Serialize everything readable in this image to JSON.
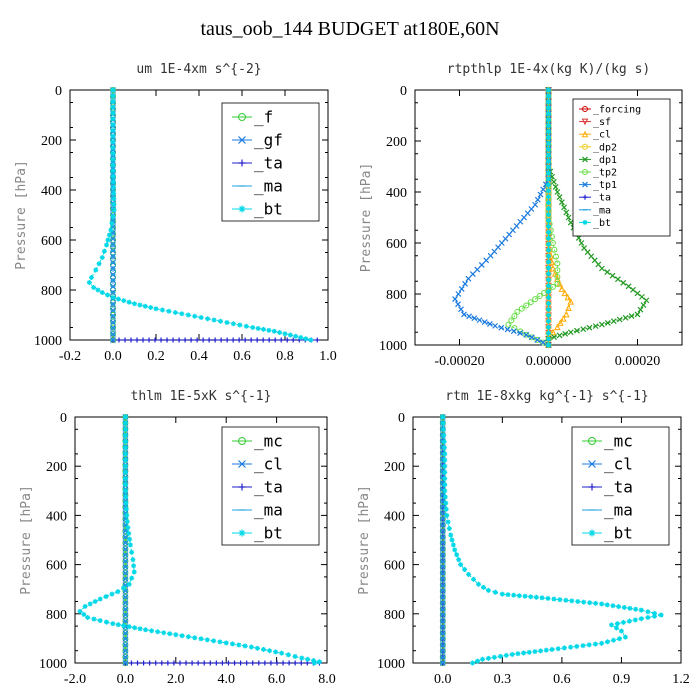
{
  "figure": {
    "title": "taus_oob_144  BUDGET at180E,60N"
  },
  "chart_data": [
    {
      "type": "line",
      "title": "um  1E-4xm s^{-2}",
      "ylabel": "Pressure [hPa]",
      "xlim": [
        -0.2,
        1.0
      ],
      "ylim": [
        1000,
        0
      ],
      "xticks": [
        "-0.2",
        "0.0",
        "0.2",
        "0.4",
        "0.6",
        "0.8",
        "1.0"
      ],
      "yticks": [
        "0",
        "200",
        "400",
        "600",
        "800",
        "1000"
      ],
      "legend_style": "large",
      "series": [
        {
          "name": "_f",
          "color": "#33cc33",
          "marker": "o",
          "points": [
            [
              0,
              0
            ],
            [
              0,
              100
            ],
            [
              0,
              200
            ],
            [
              0,
              300
            ],
            [
              0,
              400
            ],
            [
              0,
              500
            ],
            [
              0,
              600
            ],
            [
              0,
              700
            ],
            [
              0,
              800
            ],
            [
              0,
              900
            ],
            [
              0,
              1000
            ]
          ]
        },
        {
          "name": "_gf",
          "color": "#1a7ae0",
          "marker": "x",
          "points": [
            [
              0,
              0
            ],
            [
              0,
              1000
            ]
          ]
        },
        {
          "name": "_ta",
          "color": "#2222cc",
          "marker": "+",
          "points": [
            [
              0,
              1000
            ],
            [
              0.95,
              1000
            ]
          ]
        },
        {
          "name": "_ma",
          "color": "#22a0e0",
          "marker": "-",
          "points": [
            [
              0,
              0
            ],
            [
              0,
              1000
            ]
          ]
        },
        {
          "name": "_bt",
          "color": "#00d8e8",
          "marker": "*",
          "points": [
            [
              0,
              0
            ],
            [
              0,
              300
            ],
            [
              0.005,
              480
            ],
            [
              -0.01,
              560
            ],
            [
              -0.03,
              620
            ],
            [
              -0.05,
              670
            ],
            [
              -0.08,
              720
            ],
            [
              -0.1,
              750
            ],
            [
              -0.11,
              770
            ],
            [
              -0.09,
              790
            ],
            [
              -0.05,
              810
            ],
            [
              0.0,
              830
            ],
            [
              0.1,
              855
            ],
            [
              0.2,
              875
            ],
            [
              0.35,
              900
            ],
            [
              0.5,
              925
            ],
            [
              0.65,
              950
            ],
            [
              0.75,
              965
            ],
            [
              0.85,
              985
            ],
            [
              0.92,
              1000
            ]
          ]
        }
      ]
    },
    {
      "type": "line",
      "title": "rtpthlp  1E-4x(kg K)/(kg s)",
      "ylabel": "Pressure [hPa]",
      "xlim": [
        -0.0003,
        0.0003
      ],
      "ylim": [
        1000,
        0
      ],
      "xticks": [
        "-0.00020",
        "0.00000",
        "0.00020"
      ],
      "yticks": [
        "0",
        "200",
        "400",
        "600",
        "800",
        "1000"
      ],
      "legend_style": "small",
      "series": [
        {
          "name": "_forcing",
          "color": "#cc0000",
          "marker": "o",
          "points": [
            [
              0,
              0
            ],
            [
              0,
              1000
            ]
          ]
        },
        {
          "name": "_sf",
          "color": "#dd3333",
          "marker": "v",
          "points": [
            [
              0,
              0
            ],
            [
              0,
              1000
            ]
          ]
        },
        {
          "name": "_cl",
          "color": "#ffaa00",
          "marker": "^",
          "points": [
            [
              0,
              0
            ],
            [
              0,
              600
            ],
            [
              1e-05,
              700
            ],
            [
              3e-05,
              780
            ],
            [
              5e-05,
              830
            ],
            [
              4e-05,
              880
            ],
            [
              2e-05,
              930
            ],
            [
              0,
              970
            ],
            [
              0,
              1000
            ]
          ]
        },
        {
          "name": "_dp2",
          "color": "#eecc22",
          "marker": "o",
          "points": [
            [
              0,
              0
            ],
            [
              0,
              1000
            ]
          ]
        },
        {
          "name": "_dp1",
          "color": "#229922",
          "marker": "x",
          "points": [
            [
              0,
              0
            ],
            [
              0,
              300
            ],
            [
              2e-05,
              400
            ],
            [
              5e-05,
              520
            ],
            [
              8e-05,
              620
            ],
            [
              0.00012,
              700
            ],
            [
              0.00018,
              770
            ],
            [
              0.00022,
              825
            ],
            [
              0.0002,
              880
            ],
            [
              0.00012,
              920
            ],
            [
              5e-05,
              950
            ],
            [
              0,
              975
            ],
            [
              0,
              1000
            ]
          ]
        },
        {
          "name": "_tp2",
          "color": "#66dd44",
          "marker": "o",
          "points": [
            [
              0,
              0
            ],
            [
              0,
              500
            ],
            [
              1e-05,
              600
            ],
            [
              2e-05,
              680
            ],
            [
              2e-05,
              760
            ],
            [
              -3e-05,
              820
            ],
            [
              -7e-05,
              870
            ],
            [
              -9e-05,
              920
            ],
            [
              -5e-05,
              960
            ],
            [
              0,
              1000
            ]
          ]
        },
        {
          "name": "_tp1",
          "color": "#1a7ae0",
          "marker": "x",
          "points": [
            [
              0,
              0
            ],
            [
              0,
              350
            ],
            [
              -3e-05,
              450
            ],
            [
              -8e-05,
              550
            ],
            [
              -0.00013,
              650
            ],
            [
              -0.00018,
              740
            ],
            [
              -0.00021,
              820
            ],
            [
              -0.00019,
              880
            ],
            [
              -0.00012,
              925
            ],
            [
              -5e-05,
              960
            ],
            [
              0,
              1000
            ]
          ]
        },
        {
          "name": "_ta",
          "color": "#2222cc",
          "marker": "+",
          "points": [
            [
              0,
              0
            ],
            [
              0,
              1000
            ]
          ]
        },
        {
          "name": "_ma",
          "color": "#22a0e0",
          "marker": "-",
          "points": [
            [
              0,
              0
            ],
            [
              0,
              1000
            ]
          ]
        },
        {
          "name": "_bt",
          "color": "#00d8e8",
          "marker": "*",
          "points": [
            [
              0,
              0
            ],
            [
              0,
              1000
            ]
          ]
        }
      ]
    },
    {
      "type": "line",
      "title": "thlm  1E-5xK s^{-1}",
      "ylabel": "Pressure [hPa]",
      "xlim": [
        -2.0,
        8.0
      ],
      "ylim": [
        1000,
        0
      ],
      "xticks": [
        "-2.0",
        "0.0",
        "2.0",
        "4.0",
        "6.0",
        "8.0"
      ],
      "yticks": [
        "0",
        "200",
        "400",
        "600",
        "800",
        "1000"
      ],
      "legend_style": "large",
      "series": [
        {
          "name": "_mc",
          "color": "#33cc33",
          "marker": "o",
          "points": [
            [
              0,
              0
            ],
            [
              0,
              1000
            ]
          ]
        },
        {
          "name": "_cl",
          "color": "#1a7ae0",
          "marker": "x",
          "points": [
            [
              0,
              0
            ],
            [
              0,
              1000
            ]
          ]
        },
        {
          "name": "_ta",
          "color": "#2222cc",
          "marker": "+",
          "points": [
            [
              0,
              1000
            ],
            [
              7.7,
              1000
            ]
          ]
        },
        {
          "name": "_ma",
          "color": "#22a0e0",
          "marker": "-",
          "points": [
            [
              0,
              0
            ],
            [
              0,
              1000
            ]
          ]
        },
        {
          "name": "_bt",
          "color": "#00d8e8",
          "marker": "*",
          "points": [
            [
              0,
              0
            ],
            [
              0,
              300
            ],
            [
              0.05,
              400
            ],
            [
              0.1,
              450
            ],
            [
              0.2,
              520
            ],
            [
              0.3,
              580
            ],
            [
              0.35,
              630
            ],
            [
              0.15,
              680
            ],
            [
              -0.3,
              710
            ],
            [
              -1.0,
              740
            ],
            [
              -1.6,
              770
            ],
            [
              -1.8,
              790
            ],
            [
              -1.5,
              815
            ],
            [
              -0.5,
              840
            ],
            [
              0.8,
              865
            ],
            [
              2.0,
              885
            ],
            [
              3.5,
              910
            ],
            [
              5.0,
              935
            ],
            [
              6.2,
              960
            ],
            [
              7.0,
              980
            ],
            [
              7.7,
              995
            ],
            [
              7.5,
              1000
            ]
          ]
        }
      ]
    },
    {
      "type": "line",
      "title": "rtm  1E-8xkg kg^{-1} s^{-1}",
      "ylabel": "Pressure [hPa]",
      "xlim": [
        -0.15,
        1.2
      ],
      "ylim": [
        1000,
        0
      ],
      "xticks": [
        "0.0",
        "0.3",
        "0.6",
        "0.9",
        "1.2"
      ],
      "yticks": [
        "0",
        "200",
        "400",
        "600",
        "800",
        "1000"
      ],
      "legend_style": "large",
      "series": [
        {
          "name": "_mc",
          "color": "#33cc33",
          "marker": "o",
          "points": [
            [
              0,
              0
            ],
            [
              0,
              1000
            ]
          ]
        },
        {
          "name": "_cl",
          "color": "#1a7ae0",
          "marker": "x",
          "points": [
            [
              0,
              0
            ],
            [
              0,
              1000
            ]
          ]
        },
        {
          "name": "_ta",
          "color": "#2222cc",
          "marker": "+",
          "points": [
            [
              0,
              0
            ],
            [
              0,
              1000
            ]
          ]
        },
        {
          "name": "_ma",
          "color": "#22a0e0",
          "marker": "-",
          "points": [
            [
              0,
              0
            ],
            [
              0,
              1000
            ]
          ]
        },
        {
          "name": "_bt",
          "color": "#00d8e8",
          "marker": "*",
          "points": [
            [
              0,
              0
            ],
            [
              0.01,
              150
            ],
            [
              0.01,
              300
            ],
            [
              0.02,
              400
            ],
            [
              0.04,
              480
            ],
            [
              0.06,
              540
            ],
            [
              0.09,
              600
            ],
            [
              0.13,
              640
            ],
            [
              0.18,
              680
            ],
            [
              0.23,
              705
            ],
            [
              0.3,
              720
            ],
            [
              0.5,
              735
            ],
            [
              0.8,
              760
            ],
            [
              1.0,
              785
            ],
            [
              1.1,
              805
            ],
            [
              1.0,
              820
            ],
            [
              0.85,
              845
            ],
            [
              0.9,
              870
            ],
            [
              0.92,
              895
            ],
            [
              0.8,
              920
            ],
            [
              0.55,
              945
            ],
            [
              0.35,
              965
            ],
            [
              0.2,
              985
            ],
            [
              0.15,
              1000
            ]
          ]
        }
      ]
    }
  ]
}
